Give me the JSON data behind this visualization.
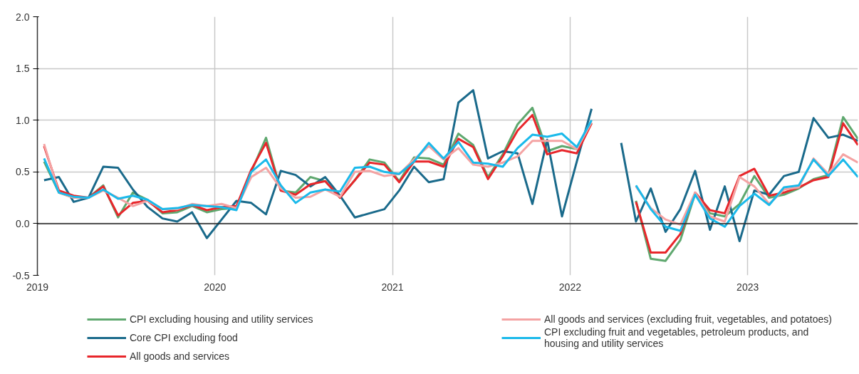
{
  "chart_data": {
    "type": "line",
    "x": [
      "2019-01-15",
      "2019-02-15",
      "2019-03-15",
      "2019-04-15",
      "2019-05-15",
      "2019-06-15",
      "2019-07-15",
      "2019-08-15",
      "2019-09-15",
      "2019-10-15",
      "2019-11-15",
      "2019-12-15",
      "2020-01-15",
      "2020-02-15",
      "2020-03-15",
      "2020-04-15",
      "2020-05-15",
      "2020-06-15",
      "2020-07-15",
      "2020-08-15",
      "2020-09-15",
      "2020-10-15",
      "2020-11-15",
      "2020-12-15",
      "2021-01-15",
      "2021-02-15",
      "2021-03-15",
      "2021-04-15",
      "2021-05-15",
      "2021-06-15",
      "2021-07-15",
      "2021-08-15",
      "2021-09-15",
      "2021-10-15",
      "2021-11-15",
      "2021-12-15",
      "2022-01-15",
      "2022-02-15",
      "2022-03-15",
      "2022-04-15",
      "2022-05-15",
      "2022-06-15",
      "2022-07-15",
      "2022-08-15",
      "2022-09-15",
      "2022-10-15",
      "2022-11-15",
      "2022-12-15",
      "2023-01-15",
      "2023-02-15",
      "2023-03-15",
      "2023-04-15",
      "2023-05-15",
      "2023-06-15",
      "2023-07-15",
      "2023-08-15"
    ],
    "series": [
      {
        "name": "CPI excluding housing and utility services",
        "color": "#5fa86f",
        "values": [
          0.6,
          0.3,
          0.25,
          0.25,
          0.37,
          0.06,
          0.3,
          0.23,
          0.1,
          0.11,
          0.17,
          0.11,
          0.14,
          0.15,
          0.5,
          0.83,
          0.32,
          0.3,
          0.45,
          0.41,
          0.25,
          0.42,
          0.62,
          0.59,
          0.41,
          0.64,
          0.63,
          0.57,
          0.87,
          0.76,
          0.45,
          0.67,
          0.96,
          1.12,
          0.7,
          0.75,
          0.72,
          0.97,
          null,
          null,
          0.22,
          -0.34,
          -0.36,
          -0.16,
          0.29,
          0.1,
          0.07,
          0.19,
          0.46,
          0.25,
          0.28,
          0.34,
          0.43,
          0.47,
          1.03,
          0.82
        ]
      },
      {
        "name": "Core CPI excluding food",
        "color": "#1a6a8b",
        "values": [
          0.42,
          0.45,
          0.21,
          0.25,
          0.55,
          0.54,
          0.33,
          0.16,
          0.05,
          0.02,
          0.11,
          -0.14,
          0.04,
          0.22,
          0.2,
          0.09,
          0.51,
          0.47,
          0.36,
          0.45,
          0.27,
          0.06,
          0.1,
          0.14,
          0.32,
          0.55,
          0.4,
          0.43,
          1.17,
          1.29,
          0.63,
          0.7,
          0.68,
          0.19,
          0.81,
          0.07,
          0.6,
          1.11,
          null,
          0.78,
          0.02,
          0.34,
          -0.08,
          0.14,
          0.51,
          -0.06,
          0.36,
          -0.17,
          0.32,
          0.28,
          0.46,
          0.5,
          1.02,
          0.83,
          0.86,
          0.8
        ]
      },
      {
        "name": "All goods and services",
        "color": "#e8262b",
        "values": [
          0.75,
          0.32,
          0.27,
          0.25,
          0.36,
          0.08,
          0.2,
          0.22,
          0.11,
          0.13,
          0.18,
          0.13,
          0.16,
          0.17,
          0.52,
          0.78,
          0.32,
          0.28,
          0.38,
          0.41,
          0.25,
          0.42,
          0.59,
          0.57,
          0.4,
          0.6,
          0.6,
          0.55,
          0.82,
          0.74,
          0.43,
          0.65,
          0.9,
          1.05,
          0.67,
          0.71,
          0.68,
          0.97,
          null,
          null,
          0.21,
          -0.28,
          -0.28,
          -0.1,
          0.3,
          0.13,
          0.1,
          0.46,
          0.53,
          0.27,
          0.3,
          0.35,
          0.42,
          0.45,
          0.97,
          0.76
        ]
      },
      {
        "name": "All goods and services (excluding fruit, vegetables, and potatoes)",
        "color": "#f4a3a3",
        "values": [
          0.77,
          0.3,
          0.25,
          0.25,
          0.32,
          0.25,
          0.17,
          0.22,
          0.14,
          0.14,
          0.19,
          0.17,
          0.19,
          0.15,
          0.45,
          0.54,
          0.34,
          0.25,
          0.26,
          0.33,
          0.26,
          0.5,
          0.51,
          0.46,
          0.48,
          0.62,
          0.75,
          0.62,
          0.73,
          0.57,
          0.55,
          0.59,
          0.65,
          0.8,
          0.8,
          0.8,
          0.72,
          0.98,
          null,
          null,
          0.36,
          0.15,
          0.04,
          -0.01,
          0.3,
          0.07,
          0.02,
          0.45,
          0.36,
          0.19,
          0.33,
          0.35,
          0.63,
          0.48,
          0.67,
          0.59
        ]
      },
      {
        "name": "CPI excluding fruit and vegetables, petroleum products, and housing and utility services",
        "color": "#1ab9ea",
        "values": [
          0.63,
          0.3,
          0.26,
          0.25,
          0.33,
          0.24,
          0.27,
          0.23,
          0.14,
          0.15,
          0.18,
          0.17,
          0.16,
          0.13,
          0.5,
          0.62,
          0.37,
          0.2,
          0.3,
          0.33,
          0.31,
          0.54,
          0.55,
          0.5,
          0.48,
          0.6,
          0.78,
          0.63,
          0.79,
          0.59,
          0.58,
          0.55,
          0.73,
          0.86,
          0.84,
          0.87,
          0.74,
          1.0,
          null,
          null,
          0.37,
          0.14,
          -0.03,
          -0.07,
          0.28,
          0.05,
          -0.03,
          0.17,
          0.29,
          0.18,
          0.35,
          0.37,
          0.62,
          0.46,
          0.62,
          0.45
        ]
      }
    ],
    "xlim": [
      "2019",
      "2023-08-15"
    ],
    "xticks": [
      "2019",
      "2020",
      "2021",
      "2022",
      "2023"
    ],
    "ylim": [
      -0.5,
      2.0
    ],
    "yticks": [
      {
        "value": -0.5,
        "label": "-0.5"
      },
      {
        "value": 0,
        "label": "0.0"
      },
      {
        "value": 0.5,
        "label": "0.5"
      },
      {
        "value": 1.0,
        "label": "1.0"
      },
      {
        "value": 1.5,
        "label": "1.5"
      },
      {
        "value": 2.0,
        "label": "2.0"
      }
    ],
    "ref_lines": [
      {
        "axis": "y",
        "value": 0,
        "color": "#222222"
      }
    ],
    "grid": true,
    "legend": "bottom"
  }
}
